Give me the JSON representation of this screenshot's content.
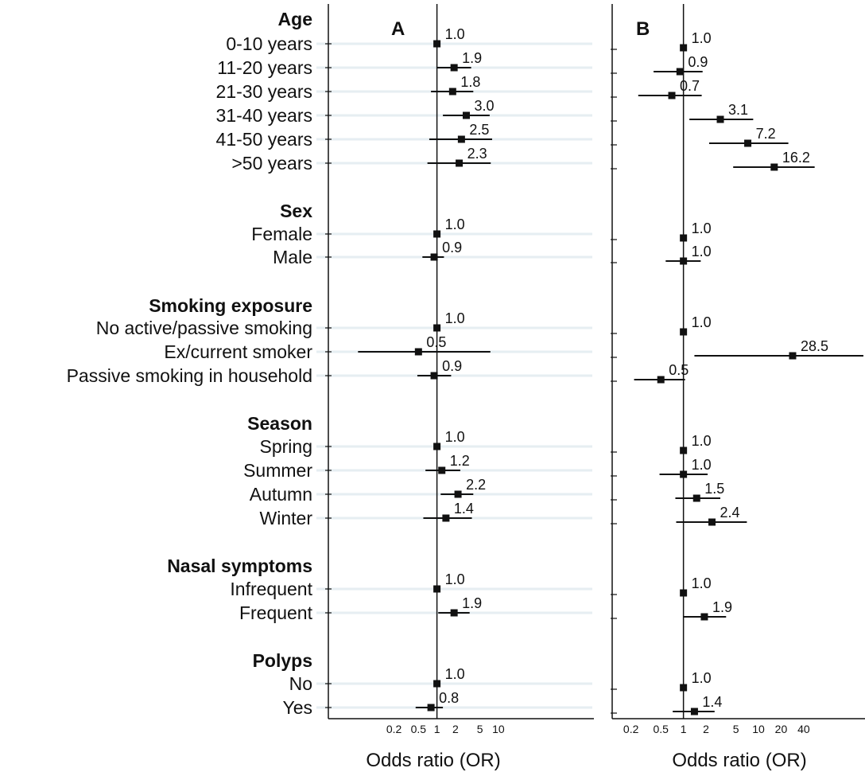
{
  "chart_data": {
    "type": "forest",
    "scale": "log",
    "rows": [
      {
        "label": "Age",
        "header": true
      },
      {
        "label": "0-10 years"
      },
      {
        "label": "11-20 years"
      },
      {
        "label": "21-30 years"
      },
      {
        "label": "31-40 years"
      },
      {
        "label": "41-50 years"
      },
      {
        "label": ">50 years"
      },
      {
        "label": "Sex",
        "header": true
      },
      {
        "label": "Female"
      },
      {
        "label": "Male"
      },
      {
        "label": "Smoking exposure",
        "header": true
      },
      {
        "label": "No active/passive smoking"
      },
      {
        "label": "Ex/current smoker"
      },
      {
        "label": "Passive smoking in household"
      },
      {
        "label": "Season",
        "header": true
      },
      {
        "label": "Spring"
      },
      {
        "label": "Summer"
      },
      {
        "label": "Autumn"
      },
      {
        "label": "Winter"
      },
      {
        "label": "Nasal symptoms",
        "header": true
      },
      {
        "label": "Infrequent"
      },
      {
        "label": "Frequent"
      },
      {
        "label": "Polyps",
        "header": true
      },
      {
        "label": "No"
      },
      {
        "label": "Yes"
      }
    ],
    "panels": [
      {
        "label": "A",
        "xlabel": "Odds ratio (OR)",
        "xticks": [
          "0.2",
          "0.5",
          "1",
          "2",
          "5",
          "10"
        ],
        "xlim": [
          0.05,
          35
        ],
        "reference": 1,
        "estimates": [
          {
            "row": "0-10 years",
            "or": 1.0,
            "text": "1.0",
            "lo": null,
            "hi": null
          },
          {
            "row": "11-20 years",
            "or": 1.9,
            "text": "1.9",
            "lo": 1.0,
            "hi": 3.6
          },
          {
            "row": "21-30 years",
            "or": 1.8,
            "text": "1.8",
            "lo": 0.8,
            "hi": 3.9
          },
          {
            "row": "31-40 years",
            "or": 3.0,
            "text": "3.0",
            "lo": 1.25,
            "hi": 7.2
          },
          {
            "row": "41-50 years",
            "or": 2.5,
            "text": "2.5",
            "lo": 0.75,
            "hi": 7.9
          },
          {
            "row": ">50 years",
            "or": 2.3,
            "text": "2.3",
            "lo": 0.7,
            "hi": 7.5
          },
          {
            "row": "Female",
            "or": 1.0,
            "text": "1.0",
            "lo": null,
            "hi": null
          },
          {
            "row": "Male",
            "or": 0.9,
            "text": "0.9",
            "lo": 0.58,
            "hi": 1.3
          },
          {
            "row": "No active/passive smoking",
            "or": 1.0,
            "text": "1.0",
            "lo": null,
            "hi": null
          },
          {
            "row": "Ex/current smoker",
            "or": 0.5,
            "text": "0.5",
            "lo": 0.052,
            "hi": 7.4
          },
          {
            "row": "Passive smoking in household",
            "or": 0.9,
            "text": "0.9",
            "lo": 0.48,
            "hi": 1.7
          },
          {
            "row": "Spring",
            "or": 1.0,
            "text": "1.0",
            "lo": null,
            "hi": null
          },
          {
            "row": "Summer",
            "or": 1.2,
            "text": "1.2",
            "lo": 0.65,
            "hi": 2.4
          },
          {
            "row": "Autumn",
            "or": 2.2,
            "text": "2.2",
            "lo": 1.15,
            "hi": 3.9
          },
          {
            "row": "Winter",
            "or": 1.4,
            "text": "1.4",
            "lo": 0.6,
            "hi": 3.7
          },
          {
            "row": "Infrequent",
            "or": 1.0,
            "text": "1.0",
            "lo": null,
            "hi": null
          },
          {
            "row": "Frequent",
            "or": 1.9,
            "text": "1.9",
            "lo": 1.05,
            "hi": 3.4
          },
          {
            "row": "No",
            "or": 1.0,
            "text": "1.0",
            "lo": null,
            "hi": null
          },
          {
            "row": "Yes",
            "or": 0.8,
            "text": "0.8",
            "lo": 0.45,
            "hi": 1.25
          }
        ]
      },
      {
        "label": "B",
        "xlabel": "Odds ratio (OR)",
        "xticks": [
          "0.2",
          "0.5",
          "1",
          "2",
          "5",
          "10",
          "20",
          "40"
        ],
        "xlim": [
          0.13,
          250
        ],
        "reference": 1,
        "estimates": [
          {
            "row": "0-10 years",
            "or": 1.0,
            "text": "1.0",
            "lo": null,
            "hi": null
          },
          {
            "row": "11-20 years",
            "or": 0.9,
            "text": "0.9",
            "lo": 0.4,
            "hi": 1.8
          },
          {
            "row": "21-30 years",
            "or": 0.7,
            "text": "0.7",
            "lo": 0.25,
            "hi": 1.75
          },
          {
            "row": "31-40 years",
            "or": 3.1,
            "text": "3.1",
            "lo": 1.2,
            "hi": 8.5
          },
          {
            "row": "41-50 years",
            "or": 7.2,
            "text": "7.2",
            "lo": 2.2,
            "hi": 25
          },
          {
            "row": ">50 years",
            "or": 16.2,
            "text": "16.2",
            "lo": 4.6,
            "hi": 56
          },
          {
            "row": "Female",
            "or": 1.0,
            "text": "1.0",
            "lo": null,
            "hi": null
          },
          {
            "row": "Male",
            "or": 1.0,
            "text": "1.0",
            "lo": 0.58,
            "hi": 1.7
          },
          {
            "row": "No active/passive smoking",
            "or": 1.0,
            "text": "1.0",
            "lo": null,
            "hi": null
          },
          {
            "row": "Ex/current smoker",
            "or": 28.5,
            "text": "28.5",
            "lo": 1.4,
            "hi": 250
          },
          {
            "row": "Passive smoking in household",
            "or": 0.5,
            "text": "0.5",
            "lo": 0.22,
            "hi": 1.05
          },
          {
            "row": "Spring",
            "or": 1.0,
            "text": "1.0",
            "lo": null,
            "hi": null
          },
          {
            "row": "Summer",
            "or": 1.0,
            "text": "1.0",
            "lo": 0.48,
            "hi": 2.1
          },
          {
            "row": "Autumn",
            "or": 1.5,
            "text": "1.5",
            "lo": 0.78,
            "hi": 3.1
          },
          {
            "row": "Winter",
            "or": 2.4,
            "text": "2.4",
            "lo": 0.8,
            "hi": 7.0
          },
          {
            "row": "Infrequent",
            "or": 1.0,
            "text": "1.0",
            "lo": null,
            "hi": null
          },
          {
            "row": "Frequent",
            "or": 1.9,
            "text": "1.9",
            "lo": 1.0,
            "hi": 3.7
          },
          {
            "row": "No",
            "or": 1.0,
            "text": "1.0",
            "lo": null,
            "hi": null
          },
          {
            "row": "Yes",
            "or": 1.4,
            "text": "1.4",
            "lo": 0.72,
            "hi": 2.6
          }
        ]
      }
    ],
    "colors": {
      "marker": "#111111",
      "ci_line": "#111111",
      "row_band": "#e6eef2",
      "axis": "#111111"
    }
  }
}
